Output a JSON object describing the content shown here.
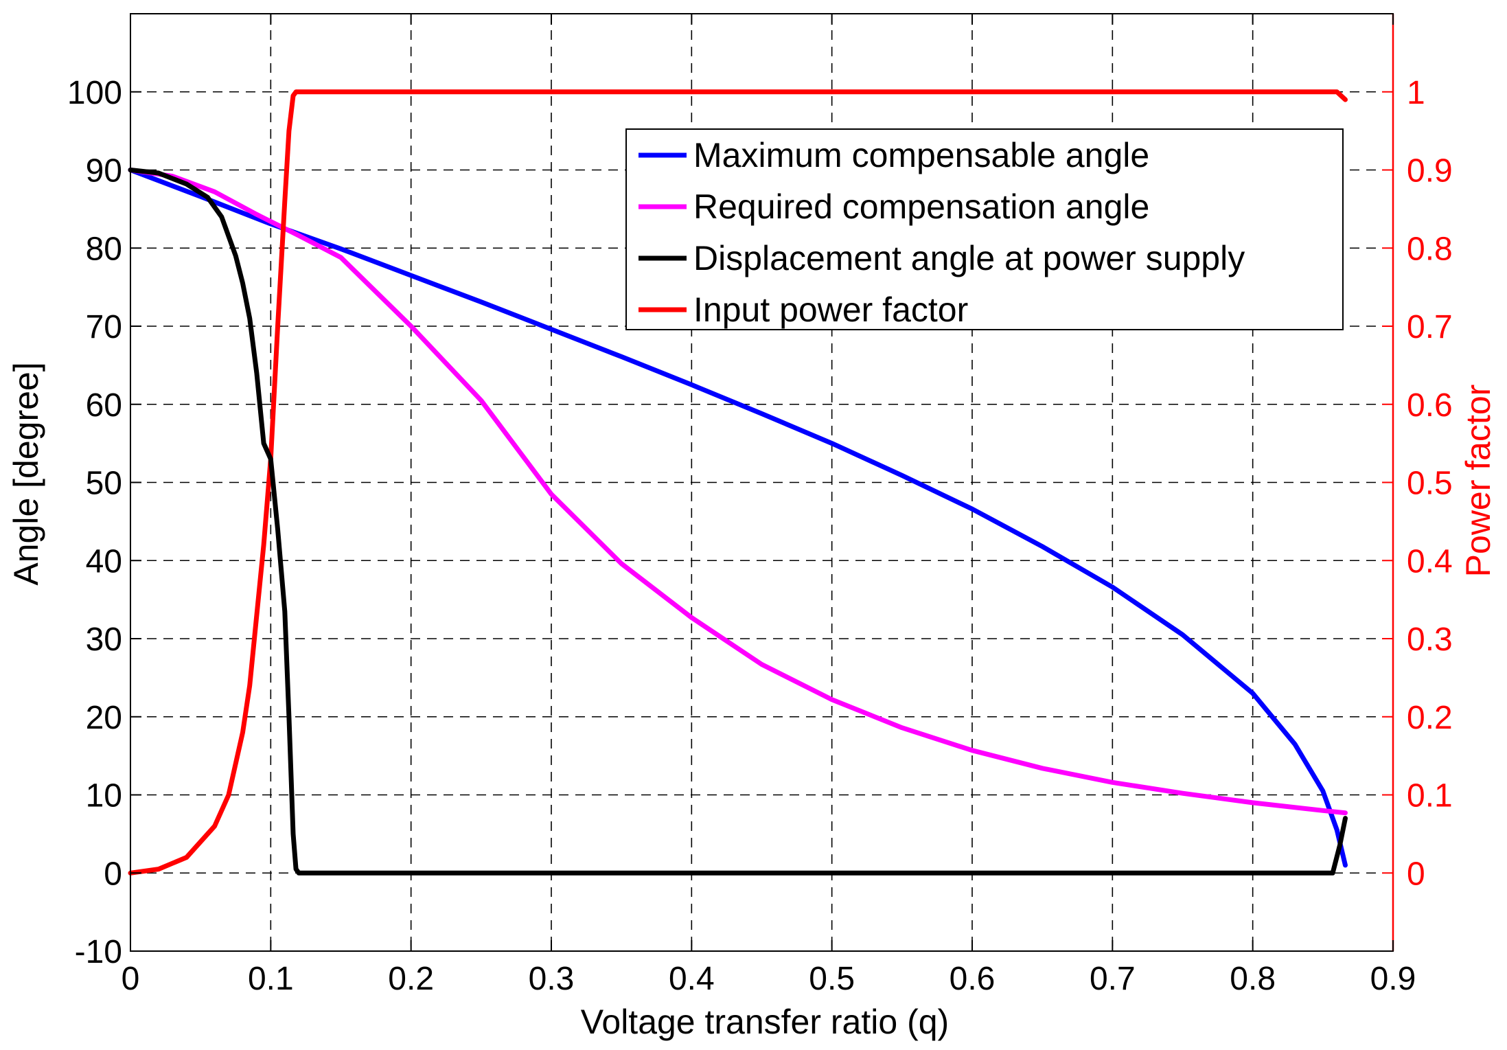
{
  "chart_data": {
    "type": "line",
    "title": "",
    "xlabel": "Voltage transfer ratio (q)",
    "ylabel": "Angle [degree]",
    "y2label": "Power factor",
    "xlim": [
      0,
      0.9
    ],
    "ylim": [
      -10,
      110
    ],
    "y2lim": [
      -0.1,
      1.1
    ],
    "xticks": [
      0,
      0.1,
      0.2,
      0.3,
      0.4,
      0.5,
      0.6,
      0.7,
      0.8,
      0.9
    ],
    "xtick_labels": [
      "0",
      "0.1",
      "0.2",
      "0.3",
      "0.4",
      "0.5",
      "0.6",
      "0.7",
      "0.8",
      "0.9"
    ],
    "yticks": [
      -10,
      0,
      10,
      20,
      30,
      40,
      50,
      60,
      70,
      80,
      90,
      100
    ],
    "ytick_labels": [
      "-10",
      "0",
      "10",
      "20",
      "30",
      "40",
      "50",
      "60",
      "70",
      "80",
      "90",
      "100"
    ],
    "y2ticks": [
      0,
      0.1,
      0.2,
      0.3,
      0.4,
      0.5,
      0.6,
      0.7,
      0.8,
      0.9,
      1
    ],
    "y2tick_labels": [
      "0",
      "0.1",
      "0.2",
      "0.3",
      "0.4",
      "0.5",
      "0.6",
      "0.7",
      "0.8",
      "0.9",
      "1"
    ],
    "grid": true,
    "legend_position": "top-right",
    "series": [
      {
        "name": "Maximum compensable angle",
        "color": "#0000ff",
        "axis": "left",
        "x": [
          0,
          0.05,
          0.1,
          0.15,
          0.2,
          0.25,
          0.3,
          0.35,
          0.4,
          0.45,
          0.5,
          0.55,
          0.6,
          0.65,
          0.7,
          0.75,
          0.8,
          0.83,
          0.85,
          0.86,
          0.866
        ],
        "y": [
          90,
          86.6,
          83.1,
          79.9,
          76.5,
          73.1,
          69.6,
          66.1,
          62.5,
          58.8,
          55.0,
          50.9,
          46.6,
          41.8,
          36.6,
          30.5,
          23.0,
          16.5,
          10.5,
          5.5,
          1.0
        ]
      },
      {
        "name": "Required compensation angle",
        "color": "#ff00ff",
        "axis": "left",
        "x": [
          0,
          0.03,
          0.06,
          0.09,
          0.12,
          0.15,
          0.2,
          0.25,
          0.3,
          0.35,
          0.4,
          0.45,
          0.5,
          0.55,
          0.6,
          0.65,
          0.7,
          0.75,
          0.8,
          0.85,
          0.866
        ],
        "y": [
          90,
          89.2,
          87.2,
          84.3,
          81.6,
          78.8,
          70.0,
          60.5,
          48.5,
          39.6,
          32.7,
          26.7,
          22.2,
          18.6,
          15.7,
          13.4,
          11.6,
          10.2,
          9.0,
          8.0,
          7.7
        ]
      },
      {
        "name": "Displacement angle at power supply",
        "color": "#000000",
        "axis": "left",
        "x": [
          0,
          0.02,
          0.04,
          0.055,
          0.065,
          0.075,
          0.08,
          0.085,
          0.09,
          0.095,
          0.1,
          0.105,
          0.11,
          0.113,
          0.116,
          0.118,
          0.12,
          0.5,
          0.857,
          0.862,
          0.866
        ],
        "y": [
          90,
          89.6,
          88.2,
          86.5,
          84.0,
          79.0,
          75.5,
          71.0,
          64.0,
          55.0,
          53.0,
          44.0,
          33.5,
          20.0,
          5.0,
          0.5,
          0,
          0,
          0,
          3.5,
          7.0
        ]
      },
      {
        "name": "Input power factor",
        "color": "#ff0000",
        "axis": "right",
        "x": [
          0,
          0.02,
          0.04,
          0.06,
          0.07,
          0.08,
          0.085,
          0.09,
          0.095,
          0.1,
          0.105,
          0.11,
          0.113,
          0.116,
          0.118,
          0.12,
          0.5,
          0.86,
          0.866
        ],
        "y": [
          0,
          0.005,
          0.02,
          0.06,
          0.1,
          0.18,
          0.24,
          0.33,
          0.42,
          0.53,
          0.7,
          0.86,
          0.95,
          0.995,
          1.0,
          1.0,
          1.0,
          1.0,
          0.99
        ]
      }
    ]
  }
}
